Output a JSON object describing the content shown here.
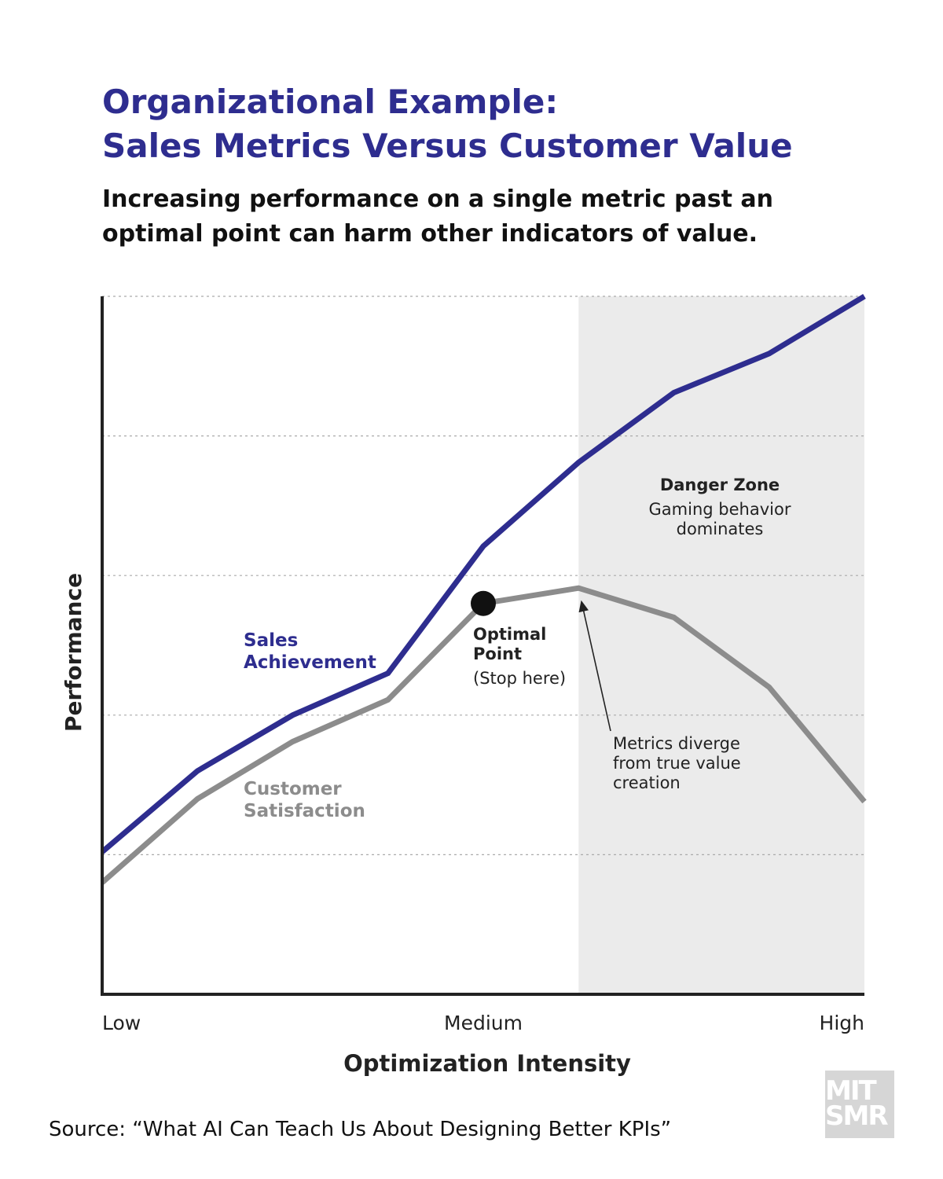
{
  "chart_data": {
    "type": "line",
    "title": [
      "Organizational Example:",
      "Sales Metrics Versus Customer Value"
    ],
    "subtitle": [
      "Increasing performance on a single metric past an",
      "optimal point can harm other indicators of value."
    ],
    "x_label": "Optimization Intensity",
    "y_label": "Performance",
    "x": [
      0,
      1,
      2,
      3,
      4,
      5,
      6,
      7,
      8
    ],
    "xlim": [
      0,
      8
    ],
    "xticks": [
      {
        "value": 0,
        "label": "Low"
      },
      {
        "value": 4,
        "label": "Medium"
      },
      {
        "value": 8,
        "label": "High"
      }
    ],
    "ylim": [
      0,
      5
    ],
    "ygrid": [
      1,
      2,
      3,
      4,
      5
    ],
    "grid": true,
    "series": [
      {
        "name": "Sales Achievement",
        "color": "#2e2d8f",
        "values": [
          1.02,
          1.6,
          2.0,
          2.3,
          3.21,
          3.81,
          4.31,
          4.59,
          5.0
        ]
      },
      {
        "name": "Customer Satisfaction",
        "color": "#8c8c8c",
        "values": [
          0.8,
          1.4,
          1.81,
          2.11,
          2.8,
          2.91,
          2.7,
          2.2,
          1.38
        ]
      }
    ],
    "danger_zone": {
      "from": 5,
      "title": "Danger Zone",
      "text": "Gaming behavior dominates",
      "color": "#ebebeb"
    },
    "optimal_point": {
      "title": "Optimal Point",
      "text": "(Stop here)"
    },
    "divergence_note": "Metrics diverge from true value creation",
    "source": "Source: “What AI Can Teach Us About Designing Better KPIs”",
    "logo": "MIT SMR"
  }
}
